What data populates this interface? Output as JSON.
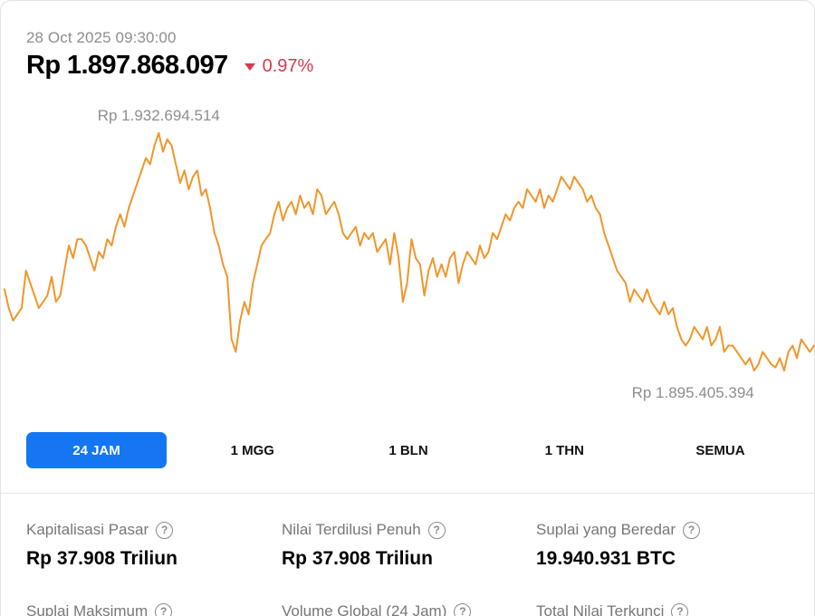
{
  "header": {
    "timestamp": "28 Oct 2025 09:30:00",
    "price": "Rp 1.897.868.097",
    "change": "0.97%",
    "change_direction": "down",
    "change_color": "#d9394c"
  },
  "chart_data": {
    "type": "line",
    "max_label": "Rp 1.932.694.514",
    "min_label": "Rp 1.895.405.394",
    "line_color": "#f0962c",
    "ylim": [
      1894000000,
      1935000000
    ],
    "values": [
      1908000000,
      1905000000,
      1903000000,
      1904000000,
      1905000000,
      1911000000,
      1909000000,
      1907000000,
      1905000000,
      1906000000,
      1907000000,
      1910000000,
      1906000000,
      1907000000,
      1911000000,
      1915000000,
      1913000000,
      1916000000,
      1916000000,
      1915000000,
      1913000000,
      1911000000,
      1914000000,
      1913000000,
      1916000000,
      1915000000,
      1918000000,
      1920000000,
      1918000000,
      1921000000,
      1923000000,
      1925000000,
      1927000000,
      1929000000,
      1928000000,
      1931000000,
      1933000000,
      1930000000,
      1932000000,
      1931000000,
      1928000000,
      1925000000,
      1927000000,
      1924000000,
      1926000000,
      1927000000,
      1923000000,
      1924000000,
      1921000000,
      1917000000,
      1915000000,
      1912000000,
      1910000000,
      1900000000,
      1898000000,
      1903000000,
      1906000000,
      1904000000,
      1909000000,
      1912000000,
      1915000000,
      1916000000,
      1917000000,
      1920000000,
      1922000000,
      1919000000,
      1921000000,
      1922000000,
      1920000000,
      1923000000,
      1921000000,
      1922000000,
      1920000000,
      1924000000,
      1923000000,
      1920000000,
      1921000000,
      1922000000,
      1920000000,
      1917000000,
      1916000000,
      1917000000,
      1918000000,
      1915000000,
      1917000000,
      1916000000,
      1917000000,
      1914000000,
      1915000000,
      1916000000,
      1912000000,
      1917000000,
      1913000000,
      1906000000,
      1909000000,
      1916000000,
      1913000000,
      1912000000,
      1907000000,
      1911000000,
      1913000000,
      1910000000,
      1912000000,
      1910000000,
      1913000000,
      1914000000,
      1909000000,
      1912000000,
      1914000000,
      1913000000,
      1912000000,
      1915000000,
      1913000000,
      1914000000,
      1917000000,
      1916000000,
      1918000000,
      1920000000,
      1919000000,
      1921000000,
      1922000000,
      1921000000,
      1924000000,
      1923000000,
      1922000000,
      1924000000,
      1921000000,
      1923000000,
      1922000000,
      1924000000,
      1926000000,
      1925000000,
      1924000000,
      1926000000,
      1925000000,
      1924000000,
      1922000000,
      1923000000,
      1921000000,
      1920000000,
      1917000000,
      1915000000,
      1913000000,
      1911000000,
      1910000000,
      1909000000,
      1906000000,
      1908000000,
      1907000000,
      1906000000,
      1908000000,
      1906000000,
      1905000000,
      1904000000,
      1906000000,
      1904000000,
      1905000000,
      1902000000,
      1900000000,
      1899000000,
      1900000000,
      1902000000,
      1901000000,
      1900000000,
      1902000000,
      1899000000,
      1900000000,
      1902000000,
      1898000000,
      1899000000,
      1899000000,
      1898000000,
      1897000000,
      1896000000,
      1897000000,
      1895000000,
      1896000000,
      1898000000,
      1897000000,
      1896000000,
      1895500000,
      1897000000,
      1895000000,
      1898000000,
      1899000000,
      1897000000,
      1900000000,
      1899000000,
      1898000000,
      1899000000
    ]
  },
  "ranges": {
    "active_color": "#1476f2",
    "items": [
      {
        "label": "24 JAM",
        "active": true
      },
      {
        "label": "1 MGG",
        "active": false
      },
      {
        "label": "1 BLN",
        "active": false
      },
      {
        "label": "1 THN",
        "active": false
      },
      {
        "label": "SEMUA",
        "active": false
      }
    ]
  },
  "stats": [
    {
      "label": "Kapitalisasi Pasar",
      "value": "Rp 37.908 Triliun"
    },
    {
      "label": "Nilai Terdilusi Penuh",
      "value": "Rp 37.908 Triliun"
    },
    {
      "label": "Suplai yang Beredar",
      "value": "19.940.931 BTC"
    },
    {
      "label": "Suplai Maksimum",
      "value": ""
    },
    {
      "label": "Volume Global (24 Jam)",
      "value": ""
    },
    {
      "label": "Total Nilai Terkunci",
      "value": ""
    }
  ],
  "icons": {
    "help": "?"
  }
}
